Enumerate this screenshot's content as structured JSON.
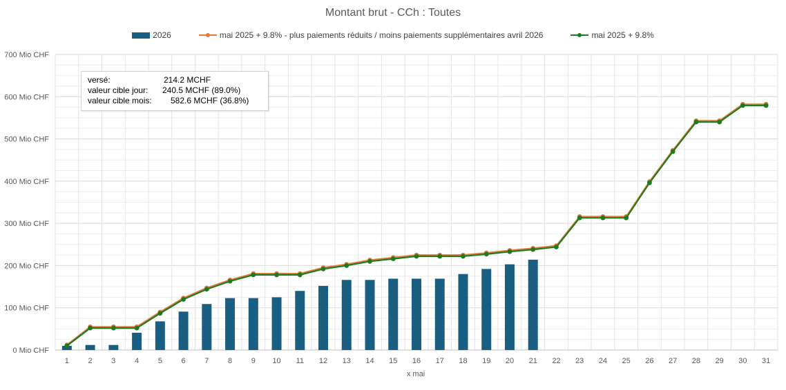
{
  "colors": {
    "bars": "#1a5f82",
    "orange": "#e07b39",
    "green": "#1e7a1e",
    "grid": "#d9d9d9"
  },
  "info_box": {
    "rows": [
      {
        "label": "versé:",
        "value": "214.2 MCHF"
      },
      {
        "label": "valeur cible jour:",
        "value": "240.5 MCHF (89.0%)"
      },
      {
        "label": "valeur cible mois:",
        "value": "582.6 MCHF (36.8%)"
      }
    ]
  },
  "chart_data": {
    "type": "bar",
    "title": "Montant brut - CCh : Toutes",
    "xlabel": "x mai",
    "ylabel": "",
    "ylim": [
      0,
      700
    ],
    "y_ticks": [
      "0 Mio CHF",
      "100 Mio CHF",
      "200 Mio CHF",
      "300 Mio CHF",
      "400 Mio CHF",
      "500 Mio CHF",
      "600 Mio CHF",
      "700 Mio CHF"
    ],
    "grid": true,
    "legend_position": "top",
    "categories": [
      "1",
      "2",
      "3",
      "4",
      "5",
      "6",
      "7",
      "8",
      "9",
      "10",
      "11",
      "12",
      "13",
      "14",
      "15",
      "16",
      "17",
      "18",
      "19",
      "20",
      "21",
      "22",
      "23",
      "24",
      "25",
      "26",
      "27",
      "28",
      "29",
      "30",
      "31"
    ],
    "series": [
      {
        "name": "2026",
        "type": "bar",
        "values": [
          10,
          12,
          12,
          41,
          68,
          91,
          109,
          123,
          123,
          125,
          140,
          152,
          166,
          166,
          169,
          169,
          169,
          180,
          192,
          203,
          214,
          null,
          null,
          null,
          null,
          null,
          null,
          null,
          null,
          null,
          null
        ]
      },
      {
        "name": "mai 2025 + 9.8% -  plus paiements réduits / moins paiements supplémentaires avril 2026",
        "type": "line",
        "values": [
          12,
          55,
          55,
          55,
          90,
          123,
          147,
          166,
          181,
          181,
          181,
          195,
          203,
          213,
          219,
          225,
          225,
          225,
          230,
          236,
          241,
          247,
          316,
          316,
          316,
          399,
          473,
          543,
          543,
          582,
          582
        ]
      },
      {
        "name": "mai 2025 + 9.8%",
        "type": "line",
        "values": [
          10,
          52,
          52,
          52,
          87,
          120,
          144,
          163,
          178,
          178,
          178,
          192,
          200,
          210,
          216,
          222,
          222,
          222,
          227,
          233,
          238,
          244,
          313,
          313,
          313,
          396,
          470,
          540,
          540,
          579,
          579
        ]
      }
    ]
  }
}
